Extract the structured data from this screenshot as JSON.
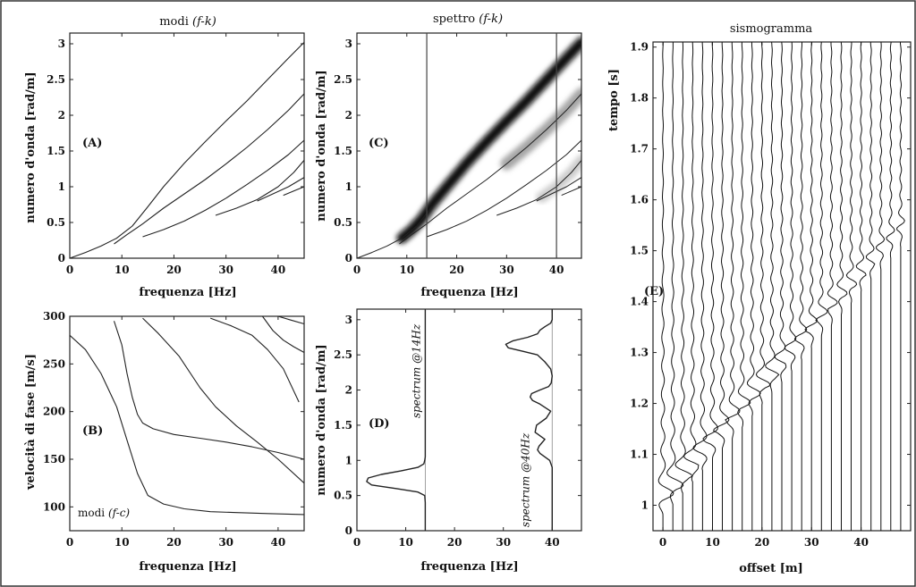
{
  "chart_data": [
    {
      "id": "A",
      "type": "line",
      "title_prefix": "modi ",
      "title_italic": "(f-k)",
      "panel_label": "(A)",
      "xlabel": "frequenza [Hz]",
      "ylabel": "numero d'onda [rad/m]",
      "xlim": [
        0,
        45
      ],
      "ylim": [
        0,
        3.15
      ],
      "xticks": [
        0,
        10,
        20,
        30,
        40
      ],
      "yticks": [
        0,
        0.5,
        1,
        1.5,
        2,
        2.5,
        3
      ],
      "ytick_labels": [
        "0",
        "0.5",
        "1",
        "1.5",
        "2",
        "2.5",
        "3"
      ],
      "series": [
        {
          "x": [
            0,
            3,
            6,
            9,
            12,
            15,
            18,
            22,
            26,
            30,
            34,
            38,
            42,
            45
          ],
          "y": [
            0,
            0.08,
            0.17,
            0.28,
            0.45,
            0.72,
            1.0,
            1.33,
            1.63,
            1.92,
            2.2,
            2.5,
            2.8,
            3.02
          ]
        },
        {
          "x": [
            8.5,
            11,
            14,
            18,
            22,
            26,
            30,
            34,
            38,
            42,
            45
          ],
          "y": [
            0.2,
            0.33,
            0.48,
            0.7,
            0.9,
            1.1,
            1.32,
            1.55,
            1.8,
            2.07,
            2.3
          ]
        },
        {
          "x": [
            14,
            18,
            22,
            26,
            30,
            34,
            38,
            42,
            45
          ],
          "y": [
            0.3,
            0.4,
            0.52,
            0.67,
            0.84,
            1.03,
            1.23,
            1.45,
            1.65
          ]
        },
        {
          "x": [
            28,
            32,
            36,
            40,
            43,
            45
          ],
          "y": [
            0.6,
            0.7,
            0.82,
            1.0,
            1.2,
            1.37
          ]
        },
        {
          "x": [
            36,
            39,
            42,
            45
          ],
          "y": [
            0.8,
            0.9,
            1.0,
            1.13
          ]
        },
        {
          "x": [
            41,
            43,
            45
          ],
          "y": [
            0.88,
            0.94,
            1.0
          ]
        }
      ]
    },
    {
      "id": "B",
      "type": "line",
      "panel_label": "(B)",
      "annot_prefix": "modi ",
      "annot_italic": "(f-c)",
      "xlabel": "frequenza [Hz]",
      "ylabel": "velocità di fase [m/s]",
      "xlim": [
        0,
        45
      ],
      "ylim": [
        75,
        300
      ],
      "xticks": [
        0,
        10,
        20,
        30,
        40
      ],
      "yticks": [
        100,
        150,
        200,
        250,
        300
      ],
      "series": [
        {
          "x": [
            0,
            3,
            6,
            9,
            11,
            13,
            15,
            18,
            22,
            27,
            32,
            38,
            45
          ],
          "y": [
            280,
            265,
            240,
            205,
            170,
            135,
            112,
            103,
            98,
            95,
            94,
            93,
            92
          ]
        },
        {
          "x": [
            8.5,
            10,
            11,
            12,
            13,
            14,
            16,
            20,
            25,
            30,
            35,
            40,
            45
          ],
          "y": [
            295,
            270,
            240,
            215,
            197,
            188,
            182,
            176,
            172,
            168,
            163,
            157,
            150
          ]
        },
        {
          "x": [
            14,
            17,
            21,
            25,
            28,
            32,
            36,
            40,
            45
          ],
          "y": [
            298,
            282,
            258,
            225,
            205,
            185,
            168,
            150,
            125
          ]
        },
        {
          "x": [
            27,
            31,
            35,
            38,
            41,
            44
          ],
          "y": [
            298,
            290,
            280,
            265,
            245,
            210
          ]
        },
        {
          "x": [
            37,
            39,
            41,
            43,
            45
          ],
          "y": [
            300,
            285,
            275,
            268,
            262
          ]
        },
        {
          "x": [
            40,
            42.5,
            45
          ],
          "y": [
            300,
            296,
            292
          ]
        }
      ]
    },
    {
      "id": "C",
      "type": "heatmap",
      "title_prefix": "spettro ",
      "title_italic": "(f-k)",
      "panel_label": "(C)",
      "xlabel": "frequenza [Hz]",
      "ylabel": "numero d'onda [rad/m]",
      "xlim": [
        0,
        45
      ],
      "ylim": [
        0,
        3.15
      ],
      "xticks": [
        0,
        10,
        20,
        30,
        40
      ],
      "yticks": [
        0,
        0.5,
        1,
        1.5,
        2,
        2.5,
        3
      ],
      "ytick_labels": [
        "0",
        "0.5",
        "1",
        "1.5",
        "2",
        "2.5",
        "3"
      ],
      "vlines": [
        14,
        40
      ],
      "bands": [
        {
          "x": [
            9,
            11,
            13,
            15,
            18,
            22,
            26,
            30,
            34,
            38,
            42,
            45
          ],
          "y": [
            0.28,
            0.4,
            0.55,
            0.75,
            1.0,
            1.33,
            1.63,
            1.92,
            2.2,
            2.5,
            2.8,
            3.02
          ],
          "width": 6,
          "intensity": 0.95
        },
        {
          "x": [
            30,
            34,
            38,
            42,
            45
          ],
          "y": [
            1.32,
            1.55,
            1.8,
            2.07,
            2.3
          ],
          "width": 7,
          "intensity": 0.35
        },
        {
          "x": [
            37,
            40,
            43,
            45
          ],
          "y": [
            0.85,
            1.0,
            1.2,
            1.37
          ],
          "width": 6,
          "intensity": 0.2
        }
      ],
      "series": [
        {
          "x": [
            0,
            3,
            6,
            9,
            12,
            15
          ],
          "y": [
            0,
            0.08,
            0.17,
            0.28,
            0.45,
            0.72
          ]
        },
        {
          "x": [
            8.5,
            11,
            14,
            18,
            22,
            26,
            30,
            34,
            38,
            42,
            45
          ],
          "y": [
            0.2,
            0.33,
            0.48,
            0.7,
            0.9,
            1.1,
            1.32,
            1.55,
            1.8,
            2.07,
            2.3
          ]
        },
        {
          "x": [
            14,
            18,
            22,
            26,
            30,
            34,
            38,
            42,
            45
          ],
          "y": [
            0.3,
            0.4,
            0.52,
            0.67,
            0.84,
            1.03,
            1.23,
            1.45,
            1.65
          ]
        },
        {
          "x": [
            28,
            32,
            36,
            40,
            43,
            45
          ],
          "y": [
            0.6,
            0.7,
            0.82,
            1.0,
            1.2,
            1.37
          ]
        },
        {
          "x": [
            36,
            39,
            42,
            45
          ],
          "y": [
            0.8,
            0.9,
            1.0,
            1.13
          ]
        },
        {
          "x": [
            41,
            43,
            45
          ],
          "y": [
            0.88,
            0.94,
            1.0
          ]
        }
      ]
    },
    {
      "id": "D",
      "type": "line",
      "panel_label": "(D)",
      "xlabel": "frequenza [Hz]",
      "ylabel": "numero d'onda [rad/m]",
      "xlim": [
        0,
        46
      ],
      "ylim": [
        0,
        3.15
      ],
      "xticks": [
        0,
        10,
        20,
        30,
        40
      ],
      "yticks": [
        0,
        0.5,
        1,
        1.5,
        2,
        2.5,
        3
      ],
      "ytick_labels": [
        "0",
        "0.5",
        "1",
        "1.5",
        "2",
        "2.5",
        "3"
      ],
      "baselines": [
        14,
        40
      ],
      "labels": [
        "spectrum @14Hz",
        "spectrum @40Hz"
      ],
      "series": [
        {
          "y": [
            0,
            0.4,
            0.5,
            0.55,
            0.6,
            0.65,
            0.7,
            0.75,
            0.8,
            0.85,
            0.9,
            0.95,
            1.0,
            1.05,
            1.5,
            3.15
          ],
          "x": [
            14,
            14,
            13.9,
            12.5,
            8,
            3,
            2,
            2.3,
            5,
            9,
            12.5,
            13.7,
            13.9,
            14,
            14,
            14
          ]
        },
        {
          "y": [
            0,
            0.9,
            1.0,
            1.1,
            1.15,
            1.2,
            1.3,
            1.4,
            1.5,
            1.6,
            1.7,
            1.8,
            1.85,
            1.9,
            1.95,
            2.0,
            2.05,
            2.1,
            2.2,
            2.3,
            2.4,
            2.5,
            2.55,
            2.6,
            2.65,
            2.7,
            2.75,
            2.8,
            2.85,
            2.9,
            2.95,
            3.0,
            3.1,
            3.15
          ],
          "x": [
            40,
            40,
            39.5,
            37.5,
            37,
            37.3,
            38.5,
            36.5,
            36.8,
            38.8,
            39.7,
            37.5,
            36,
            35.5,
            35.8,
            37.5,
            39.3,
            39.8,
            40,
            39.7,
            38.5,
            37,
            34,
            31,
            30.5,
            32,
            35,
            37,
            37.5,
            38.5,
            39.7,
            40,
            40,
            40
          ]
        }
      ]
    },
    {
      "id": "E",
      "type": "line",
      "title": "sismogramma",
      "panel_label": "(E)",
      "xlabel": "offset [m]",
      "ylabel": "tempo [s]",
      "xlim": [
        -2,
        50
      ],
      "ylim": [
        0.95,
        1.91
      ],
      "xticks": [
        0,
        10,
        20,
        30,
        40
      ],
      "yticks": [
        1,
        1.1,
        1.2,
        1.3,
        1.4,
        1.5,
        1.6,
        1.7,
        1.8,
        1.9
      ],
      "ytick_labels": [
        "1",
        "1.1",
        "1.2",
        "1.3",
        "1.4",
        "1.5",
        "1.6",
        "1.7",
        "1.8",
        "1.9"
      ],
      "trace_offsets": [
        0,
        2,
        4,
        6,
        8,
        10,
        12,
        14,
        16,
        18,
        20,
        22,
        24,
        26,
        28,
        30,
        32,
        34,
        36,
        38,
        40,
        42,
        44,
        46,
        48
      ],
      "first_arrival": {
        "x": [
          0,
          48
        ],
        "t": [
          1.01,
          1.54
        ]
      }
    }
  ]
}
